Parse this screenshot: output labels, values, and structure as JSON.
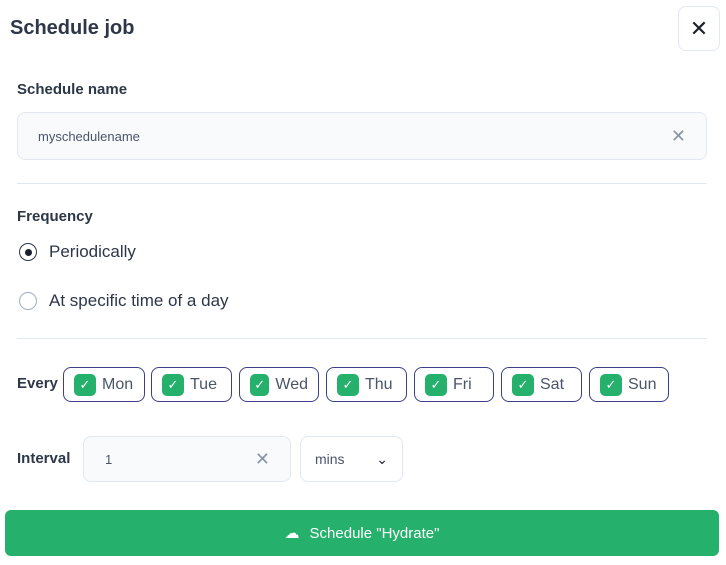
{
  "title": "Schedule job",
  "name_label": "Schedule name",
  "name_value": "myschedulename",
  "frequency_label": "Frequency",
  "options": [
    {
      "label": "Periodically",
      "selected": true
    },
    {
      "label": "At specific time of a day",
      "selected": false
    }
  ],
  "every_label": "Every",
  "days": [
    {
      "label": "Mon",
      "checked": true
    },
    {
      "label": "Tue",
      "checked": true
    },
    {
      "label": "Wed",
      "checked": true
    },
    {
      "label": "Thu",
      "checked": true
    },
    {
      "label": "Fri",
      "checked": true
    },
    {
      "label": "Sat",
      "checked": true
    },
    {
      "label": "Sun",
      "checked": true
    }
  ],
  "interval_label": "Interval",
  "interval_value": "1",
  "unit": "mins",
  "submit": "Schedule \"Hydrate\"",
  "accent": "#25b16c"
}
